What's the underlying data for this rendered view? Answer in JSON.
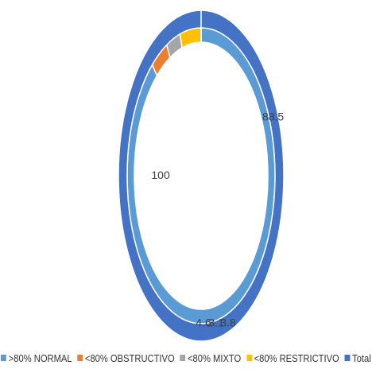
{
  "chart_data": {
    "type": "doughnut",
    "rings": [
      {
        "name": "inner",
        "categories": [
          ">80% NORMAL",
          "<80% OBSTRUCTIVO",
          "<80% MIXTO",
          "<80% RESTRICTIVO"
        ],
        "values": [
          88.5,
          3.8,
          3.1,
          4.6
        ],
        "data_labels": [
          "88.5",
          "3.8",
          "3.1",
          "4.6"
        ]
      },
      {
        "name": "outer",
        "categories": [
          "Total"
        ],
        "values": [
          100
        ],
        "data_labels": [
          "100"
        ]
      }
    ],
    "legend": {
      "position": "bottom",
      "items": [
        {
          "label": ">80% NORMAL",
          "color": "#5B9BD5"
        },
        {
          "label": "<80% OBSTRUCTIVO",
          "color": "#ED7D31"
        },
        {
          "label": "<80% MIXTO",
          "color": "#A5A5A5"
        },
        {
          "label": "<80% RESTRICTIVO",
          "color": "#FFC000"
        },
        {
          "label": "Total",
          "color": "#4472C4"
        }
      ]
    }
  }
}
